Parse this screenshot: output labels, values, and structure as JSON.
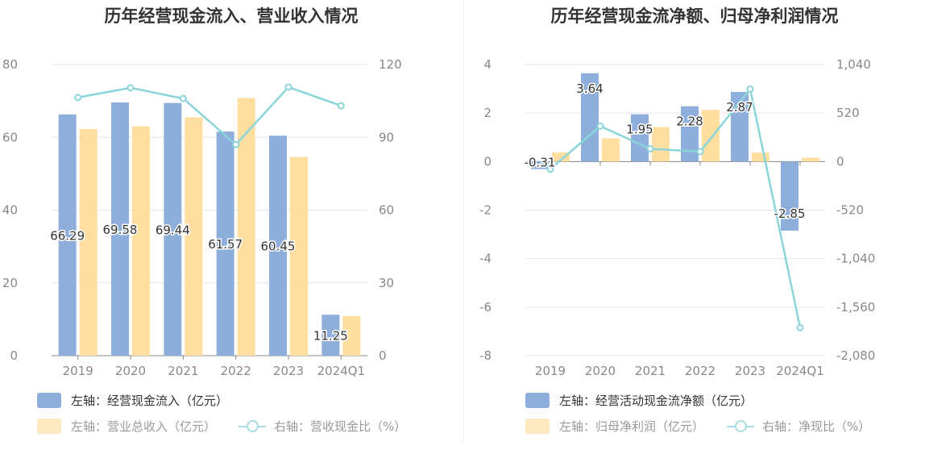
{
  "chart_data": [
    {
      "type": "bar",
      "title": "历年经营现金流入、营业收入情况",
      "categories": [
        "2019",
        "2020",
        "2021",
        "2022",
        "2023",
        "2024Q1"
      ],
      "left_axis": {
        "min": 0,
        "max": 80,
        "ticks": [
          "0",
          "20",
          "40",
          "60",
          "80"
        ]
      },
      "right_axis": {
        "min": 0,
        "max": 120,
        "ticks": [
          "0",
          "30",
          "60",
          "90",
          "120"
        ]
      },
      "grid": true,
      "legend_position": "bottom-left",
      "series": [
        {
          "name": "左轴：经营现金流入（亿元）",
          "axis": "left",
          "kind": "bar",
          "color": "#8eaedc",
          "values": [
            66.29,
            69.58,
            69.44,
            61.57,
            60.45,
            11.25
          ],
          "labels": [
            "66.29",
            "69.58",
            "69.44",
            "61.57",
            "60.45",
            "11.25"
          ]
        },
        {
          "name": "左轴：营业总收入（亿元）",
          "axis": "left",
          "kind": "bar",
          "color": "#ffdea0",
          "values": [
            62.3,
            63.0,
            65.5,
            70.8,
            54.6,
            10.9
          ]
        },
        {
          "name": "右轴：营收现金比（%）",
          "axis": "right",
          "kind": "line",
          "color": "#8ad5d9",
          "values": [
            106.4,
            110.4,
            106.0,
            87.0,
            110.7,
            103.0
          ]
        }
      ]
    },
    {
      "type": "bar",
      "title": "历年经营现金流净额、归母净利润情况",
      "categories": [
        "2019",
        "2020",
        "2021",
        "2022",
        "2023",
        "2024Q1"
      ],
      "left_axis": {
        "min": -8,
        "max": 4,
        "ticks": [
          "-8",
          "-6",
          "-4",
          "-2",
          "0",
          "2",
          "4"
        ]
      },
      "right_axis": {
        "min": -2080,
        "max": 1040,
        "ticks": [
          "-2,080",
          "-1,560",
          "-1,040",
          "-520",
          "0",
          "520",
          "1,040"
        ]
      },
      "grid": true,
      "legend_position": "bottom-left",
      "series": [
        {
          "name": "左轴：经营活动现金流净额（亿元）",
          "axis": "left",
          "kind": "bar",
          "color": "#8eaedc",
          "values": [
            -0.31,
            3.64,
            1.95,
            2.28,
            2.87,
            -2.85
          ],
          "labels": [
            "-0.31",
            "3.64",
            "1.95",
            "2.28",
            "2.87",
            "-2.85"
          ]
        },
        {
          "name": "左轴：归母净利润（亿元）",
          "axis": "left",
          "kind": "bar",
          "color": "#ffdea0",
          "values": [
            0.38,
            0.96,
            1.42,
            2.13,
            0.37,
            0.16
          ]
        },
        {
          "name": "右轴：净现比（%）",
          "axis": "right",
          "kind": "line",
          "color": "#8ad5d9",
          "values": [
            -81,
            380,
            137,
            107,
            776,
            -1780
          ]
        }
      ]
    }
  ]
}
